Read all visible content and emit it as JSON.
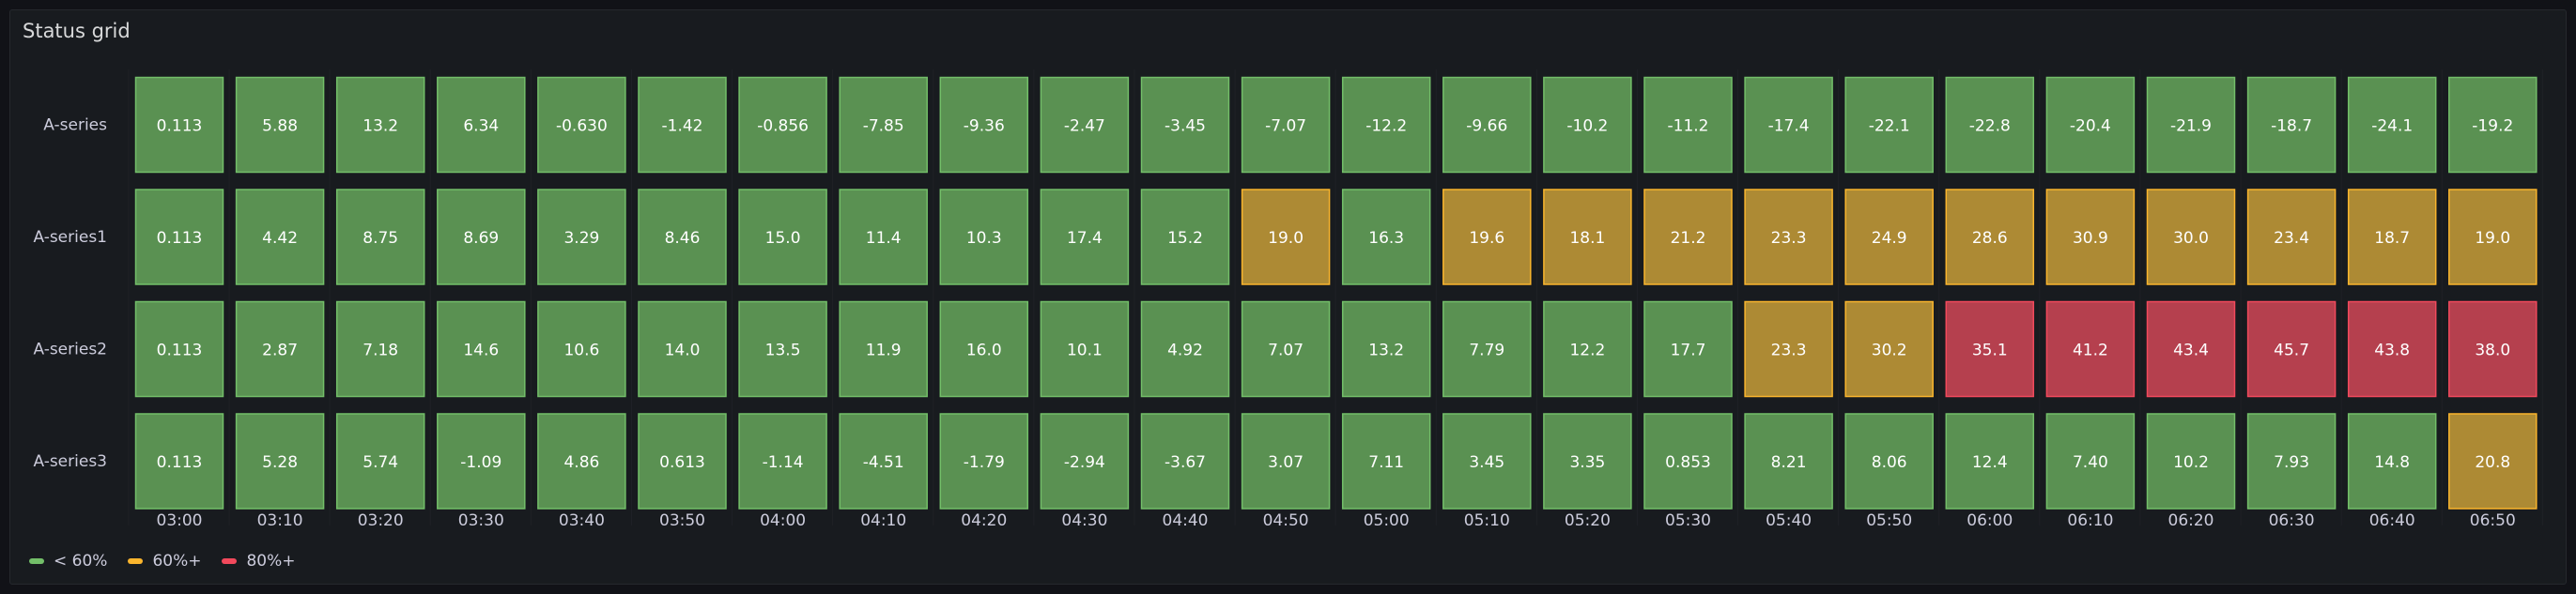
{
  "panel": {
    "title": "Status grid"
  },
  "chart_data": {
    "type": "heatmap",
    "title": "Status grid",
    "rows": [
      "A-series",
      "A-series1",
      "A-series2",
      "A-series3"
    ],
    "x": [
      "03:00",
      "03:10",
      "03:20",
      "03:30",
      "03:40",
      "03:50",
      "04:00",
      "04:10",
      "04:20",
      "04:30",
      "04:40",
      "04:50",
      "05:00",
      "05:10",
      "05:20",
      "05:30",
      "05:40",
      "05:50",
      "06:00",
      "06:10",
      "06:20",
      "06:30",
      "06:40",
      "06:50"
    ],
    "values": [
      [
        "0.113",
        "5.88",
        "13.2",
        "6.34",
        "-0.630",
        "-1.42",
        "-0.856",
        "-7.85",
        "-9.36",
        "-2.47",
        "-3.45",
        "-7.07",
        "-12.2",
        "-9.66",
        "-10.2",
        "-11.2",
        "-17.4",
        "-22.1",
        "-22.8",
        "-20.4",
        "-21.9",
        "-18.7",
        "-24.1",
        "-19.2"
      ],
      [
        "0.113",
        "4.42",
        "8.75",
        "8.69",
        "3.29",
        "8.46",
        "15.0",
        "11.4",
        "10.3",
        "17.4",
        "15.2",
        "19.0",
        "16.3",
        "19.6",
        "18.1",
        "21.2",
        "23.3",
        "24.9",
        "28.6",
        "30.9",
        "30.0",
        "23.4",
        "18.7",
        "19.0"
      ],
      [
        "0.113",
        "2.87",
        "7.18",
        "14.6",
        "10.6",
        "14.0",
        "13.5",
        "11.9",
        "16.0",
        "10.1",
        "4.92",
        "7.07",
        "13.2",
        "7.79",
        "12.2",
        "17.7",
        "23.3",
        "30.2",
        "35.1",
        "41.2",
        "43.4",
        "45.7",
        "43.8",
        "38.0"
      ],
      [
        "0.113",
        "5.28",
        "5.74",
        "-1.09",
        "4.86",
        "0.613",
        "-1.14",
        "-4.51",
        "-1.79",
        "-2.94",
        "-3.67",
        "3.07",
        "7.11",
        "3.45",
        "3.35",
        "0.853",
        "8.21",
        "8.06",
        "12.4",
        "7.40",
        "10.2",
        "7.93",
        "14.8",
        "20.8"
      ]
    ],
    "status": [
      [
        "g",
        "g",
        "g",
        "g",
        "g",
        "g",
        "g",
        "g",
        "g",
        "g",
        "g",
        "g",
        "g",
        "g",
        "g",
        "g",
        "g",
        "g",
        "g",
        "g",
        "g",
        "g",
        "g",
        "g"
      ],
      [
        "g",
        "g",
        "g",
        "g",
        "g",
        "g",
        "g",
        "g",
        "g",
        "g",
        "g",
        "y",
        "g",
        "y",
        "y",
        "y",
        "y",
        "y",
        "y",
        "y",
        "y",
        "y",
        "y",
        "y"
      ],
      [
        "g",
        "g",
        "g",
        "g",
        "g",
        "g",
        "g",
        "g",
        "g",
        "g",
        "g",
        "g",
        "g",
        "g",
        "g",
        "g",
        "y",
        "y",
        "r",
        "r",
        "r",
        "r",
        "r",
        "r"
      ],
      [
        "g",
        "g",
        "g",
        "g",
        "g",
        "g",
        "g",
        "g",
        "g",
        "g",
        "g",
        "g",
        "g",
        "g",
        "g",
        "g",
        "g",
        "g",
        "g",
        "g",
        "g",
        "g",
        "g",
        "y"
      ]
    ],
    "colors": {
      "g": {
        "fill": "#5a9152",
        "border": "#73bf69"
      },
      "y": {
        "fill": "#ad8a34",
        "border": "#fab52d"
      },
      "r": {
        "fill": "#b5404e",
        "border": "#f2495c"
      }
    },
    "legend": [
      {
        "label": "< 60%",
        "color": "#73bf69"
      },
      {
        "label": "60%+",
        "color": "#fab52d"
      },
      {
        "label": "80%+",
        "color": "#f2495c"
      }
    ],
    "legend_position": "bottom-left",
    "grid": false
  }
}
